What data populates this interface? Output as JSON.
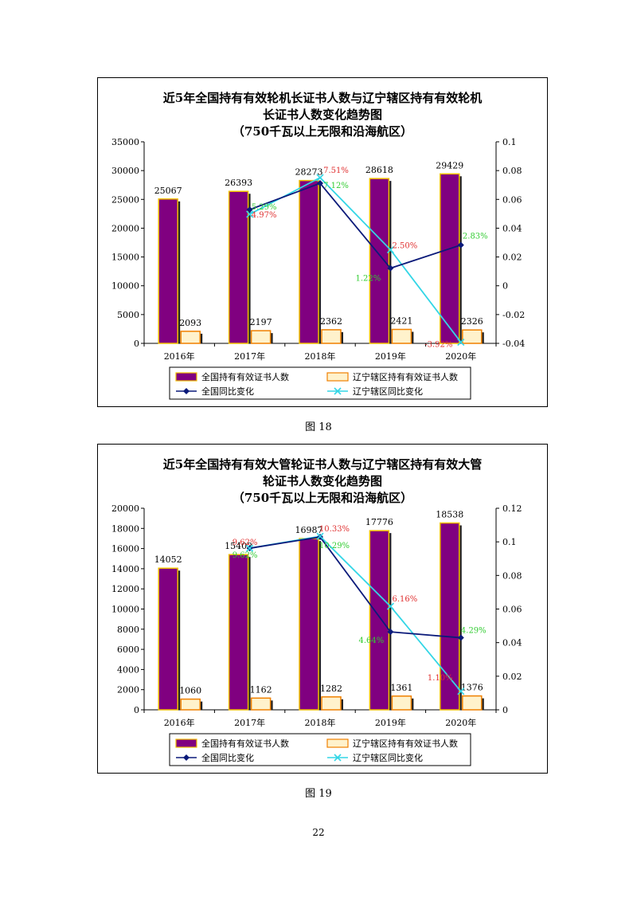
{
  "colors": {
    "bar_national": "#800080",
    "bar_national_edge": "#f0c000",
    "bar_liaoning": "#fff2cc",
    "bar_liaoning_edge": "#f08000",
    "line_national": "#0b1a7a",
    "line_liaoning": "#33d6e6",
    "label_national": "#e03030",
    "label_liaoning": "#33cc33"
  },
  "chart_data": [
    {
      "type": "bar",
      "title_lines": [
        "近5年全国持有有效轮机长证书人数与辽宁辖区持有有效轮机",
        "长证书人数变化趋势图",
        "（750千瓦以上无限和沿海航区）"
      ],
      "categories": [
        "2016年",
        "2017年",
        "2018年",
        "2019年",
        "2020年"
      ],
      "ylim": [
        0,
        35000
      ],
      "yticks": [
        "0",
        "5000",
        "10000",
        "15000",
        "20000",
        "25000",
        "30000",
        "35000"
      ],
      "y2lim": [
        -0.04,
        0.1
      ],
      "y2ticks": [
        "-0.04",
        "-0.02",
        "0",
        "0.02",
        "0.04",
        "0.06",
        "0.08",
        "0.1"
      ],
      "series": [
        {
          "name": "全国持有有效证书人数",
          "values": [
            25067,
            26393,
            28273,
            28618,
            29429
          ],
          "labels": [
            "25067",
            "26393",
            "28273",
            "28618",
            "29429"
          ]
        },
        {
          "name": "辽宁辖区持有有效证书人数",
          "values": [
            2093,
            2197,
            2362,
            2421,
            2326
          ],
          "labels": [
            "2093",
            "2197",
            "2362",
            "2421",
            "2326"
          ]
        },
        {
          "name": "全国同比变化",
          "values": [
            null,
            0.0529,
            0.0712,
            0.0122,
            0.0283
          ],
          "labels": [
            "",
            "5.29%",
            "7.12%",
            "1.22%",
            "2.83%"
          ]
        },
        {
          "name": "辽宁辖区同比变化",
          "values": [
            null,
            0.0497,
            0.0751,
            0.025,
            -0.0392
          ],
          "labels": [
            "",
            "4.97%",
            "7.51%",
            "2.50%",
            "-3.92%"
          ]
        }
      ],
      "caption": "图 18"
    },
    {
      "type": "bar",
      "title_lines": [
        "近5年全国持有有效大管轮证书人数与辽宁辖区持有有效大管",
        "轮证书人数变化趋势图",
        "（750千瓦以上无限和沿海航区）"
      ],
      "categories": [
        "2016年",
        "2017年",
        "2018年",
        "2019年",
        "2020年"
      ],
      "ylim": [
        0,
        20000
      ],
      "yticks": [
        "0",
        "2000",
        "4000",
        "6000",
        "8000",
        "10000",
        "12000",
        "14000",
        "16000",
        "18000",
        "20000"
      ],
      "y2lim": [
        0,
        0.12
      ],
      "y2ticks": [
        "0",
        "0.02",
        "0.04",
        "0.06",
        "0.08",
        "0.1",
        "0.12"
      ],
      "series": [
        {
          "name": "全国持有有效证书人数",
          "values": [
            14052,
            15402,
            16987,
            17776,
            18538
          ],
          "labels": [
            "14052",
            "15402",
            "16987",
            "17776",
            "18538"
          ]
        },
        {
          "name": "辽宁辖区持有有效证书人数",
          "values": [
            1060,
            1162,
            1282,
            1361,
            1376
          ],
          "labels": [
            "1060",
            "1162",
            "1282",
            "1361",
            "1376"
          ]
        },
        {
          "name": "全国同比变化",
          "values": [
            null,
            0.0962,
            0.1029,
            0.0464,
            0.0429
          ],
          "labels": [
            "",
            "9.62%",
            "10.29%",
            "4.64%",
            "4.29%"
          ]
        },
        {
          "name": "辽宁辖区同比变化",
          "values": [
            null,
            0.0962,
            0.1033,
            0.0616,
            0.011
          ],
          "labels": [
            "",
            "9.62%",
            "10.33%",
            "6.16%",
            "1.10%"
          ]
        }
      ],
      "caption": "图 19"
    }
  ],
  "page": {
    "number": "22"
  }
}
